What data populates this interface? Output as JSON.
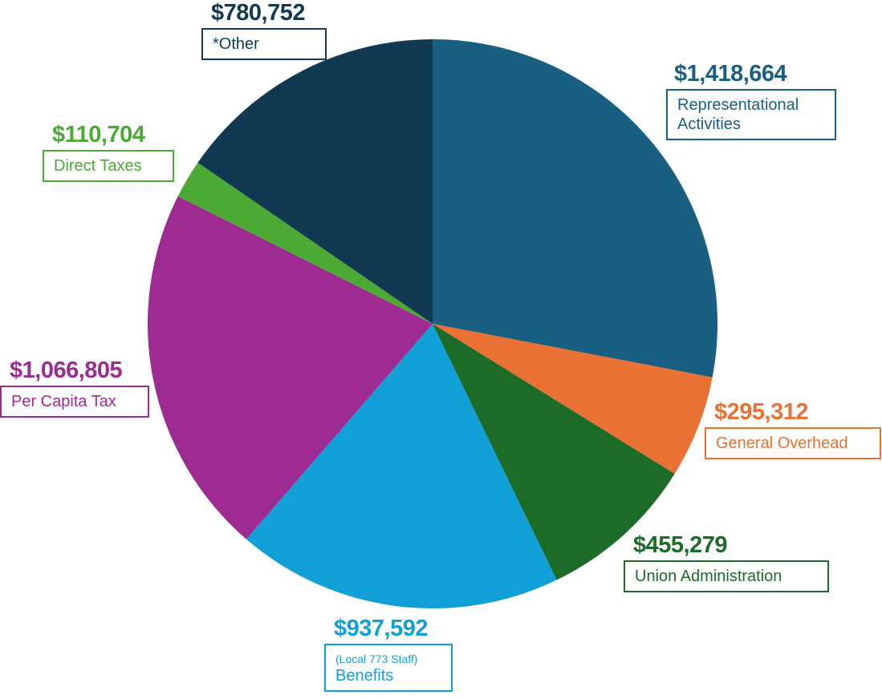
{
  "chart_data": {
    "type": "pie",
    "title": "",
    "slices": [
      {
        "label": "Representational Activities",
        "value": 1418664,
        "value_label": "$1,418,664",
        "color": "#185f82"
      },
      {
        "label": "General Overhead",
        "value": 295312,
        "value_label": "$295,312",
        "color": "#e97133"
      },
      {
        "label": "Union Administration",
        "value": 455279,
        "value_label": "$455,279",
        "color": "#1c6b27"
      },
      {
        "label": "Benefits",
        "note": "(Local 773 Staff)",
        "value": 937592,
        "value_label": "$937,592",
        "color": "#119fd8"
      },
      {
        "label": "Per Capita Tax",
        "value": 1066805,
        "value_label": "$1,066,805",
        "color": "#9d2b91"
      },
      {
        "label": "Direct Taxes",
        "value": 110704,
        "value_label": "$110,704",
        "color": "#4aaa34"
      },
      {
        "label": "*Other",
        "value": 780752,
        "value_label": "$780,752",
        "color": "#113a52"
      }
    ]
  }
}
